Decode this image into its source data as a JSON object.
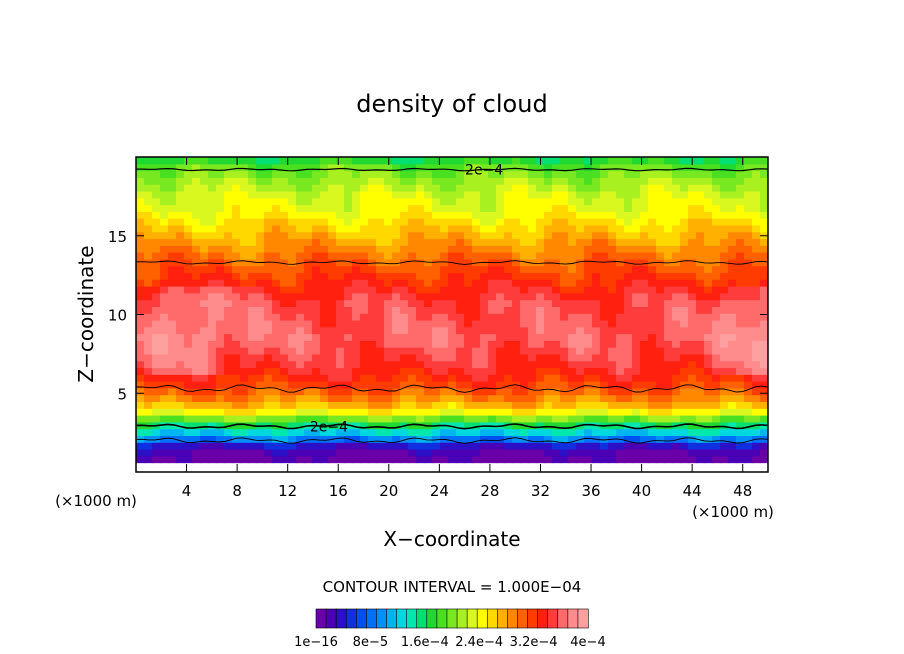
{
  "chart_data": {
    "type": "heatmap",
    "title": "density of cloud",
    "xlabel": "X−coordinate",
    "ylabel": "Z−coordinate",
    "x_unit": "(×1000 m)",
    "y_unit": "(×1000 m)",
    "xlim": [
      0,
      50
    ],
    "ylim": [
      0,
      20
    ],
    "x_ticks": [
      4,
      8,
      12,
      16,
      20,
      24,
      28,
      32,
      36,
      40,
      44,
      48
    ],
    "y_ticks": [
      5,
      10,
      15
    ],
    "contour_interval_text": "CONTOUR INTERVAL = 1.000E−04",
    "contour_labels": [
      "2e−4",
      "2e−4"
    ],
    "colorbar": {
      "min": 1e-16,
      "max": 0.0004,
      "tick_labels": [
        "1e−16",
        "8e−5",
        "1.6e−4",
        "2.4e−4",
        "3.2e−4",
        "4e−4"
      ],
      "colors": [
        "#6a00a8",
        "#4a00b4",
        "#2c10c8",
        "#1030e0",
        "#0050f0",
        "#0070f8",
        "#0090f8",
        "#00b4f0",
        "#00d8e0",
        "#00e8b0",
        "#00e070",
        "#20d830",
        "#48e020",
        "#78e820",
        "#a8f020",
        "#d8f820",
        "#ffff00",
        "#ffd800",
        "#ffb000",
        "#ff8800",
        "#ff6000",
        "#ff3c00",
        "#ff2010",
        "#ff3c3c",
        "#ff6a6a",
        "#ff8c8c",
        "#ffa0a0"
      ]
    },
    "series": [
      {
        "name": "",
        "z": [
          0.6,
          1.5,
          1.9,
          2.2,
          2.6,
          3.0,
          3.4,
          3.8,
          4.4,
          5.0,
          5.6,
          6.6,
          8.5,
          10.8,
          12.5,
          13.6,
          14.6,
          15.6,
          16.6,
          17.6,
          18.6,
          19.4,
          19.8
        ],
        "density": [
          2e-06,
          2e-05,
          6e-05,
          0.0001,
          0.00013,
          0.00016,
          0.0002,
          0.00024,
          0.00028,
          0.0003,
          0.00032,
          0.00034,
          0.00036,
          0.00035,
          0.00032,
          0.0003,
          0.00028,
          0.00026,
          0.00024,
          0.00023,
          0.00021,
          0.00019,
          0.00017
        ]
      }
    ]
  }
}
